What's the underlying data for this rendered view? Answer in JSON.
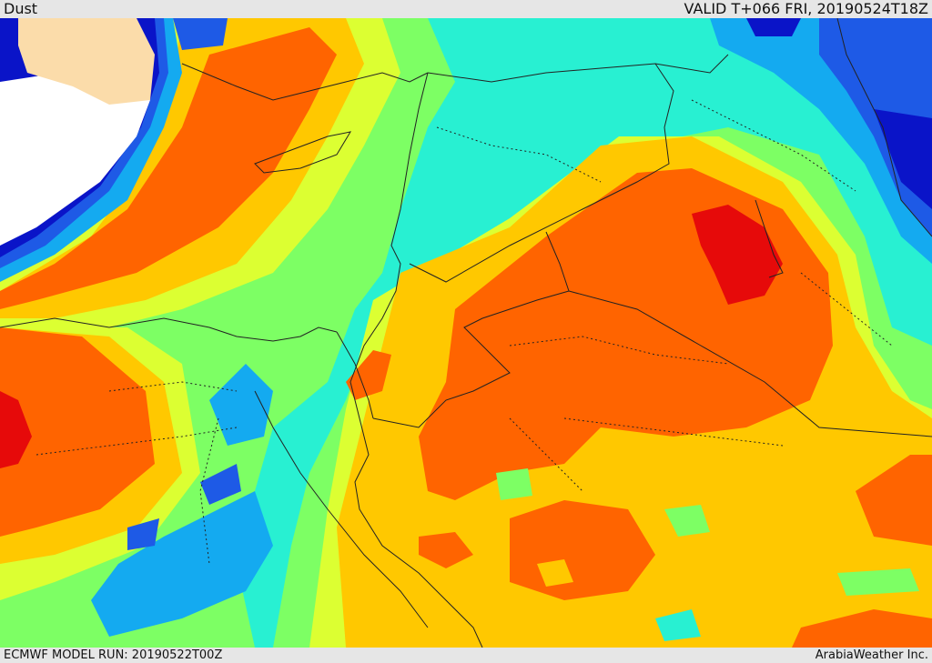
{
  "header": {
    "title": "Dust",
    "valid_label": "VALID T+066 FRI, 20190524T18Z"
  },
  "footer": {
    "model_run": "ECMWF MODEL RUN: 20190522T00Z",
    "credit": "ArabiaWeather Inc."
  },
  "palette": {
    "land_no_data": "#fbdcaa",
    "sea_no_data": "#ffffff",
    "level_1": "#0a14c8",
    "level_2": "#1e5ae6",
    "level_3": "#14aaf0",
    "level_4": "#28f0d2",
    "level_5": "#7dff64",
    "level_6": "#dcff32",
    "level_7": "#ffc800",
    "level_8": "#ff6400",
    "level_9": "#e60a0a"
  }
}
